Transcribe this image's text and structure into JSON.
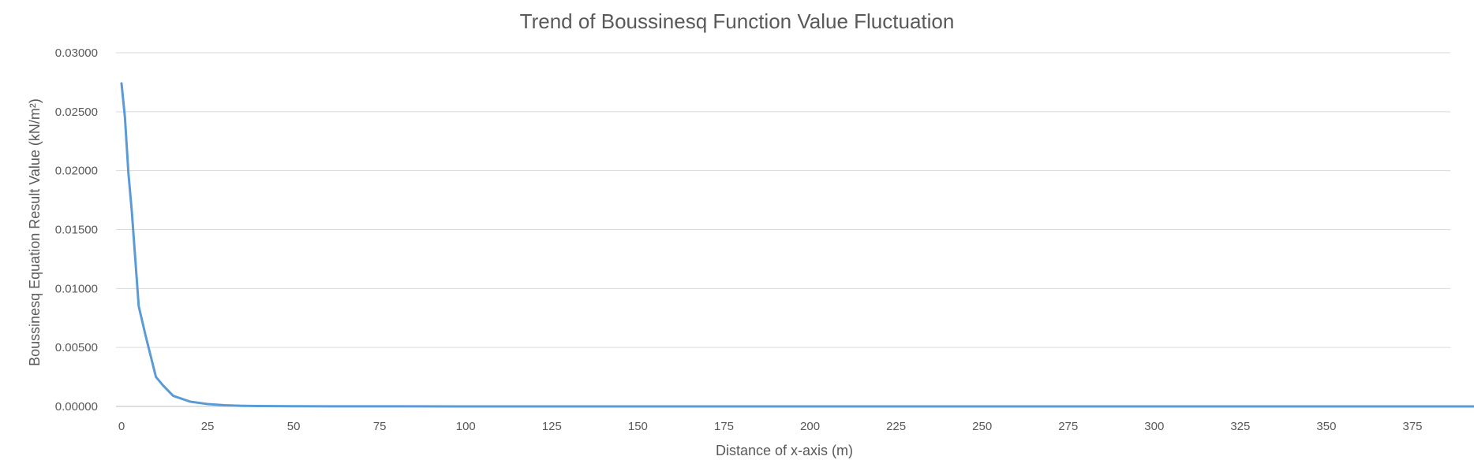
{
  "chart_data": {
    "type": "line",
    "title": "Trend of Boussinesq Function Value Fluctuation",
    "xlabel": "Distance of x-axis (m)",
    "ylabel": "Boussinesq Equation Result Value (kN/m²)",
    "xlim": [
      0,
      395
    ],
    "ylim": [
      0,
      0.03
    ],
    "x_ticks": [
      0,
      25,
      50,
      75,
      100,
      125,
      150,
      175,
      200,
      225,
      250,
      275,
      300,
      325,
      350,
      375
    ],
    "y_ticks": [
      "0.00000",
      "0.00500",
      "0.01000",
      "0.01500",
      "0.02000",
      "0.02500",
      "0.03000"
    ],
    "y_tick_values": [
      0,
      0.005,
      0.01,
      0.015,
      0.02,
      0.025,
      0.03
    ],
    "grid": true,
    "legend": "none",
    "series": [
      {
        "color": "#5b9bd5",
        "x": [
          0,
          1,
          2,
          3,
          4,
          5,
          7,
          10,
          12,
          15,
          20,
          25,
          30,
          35,
          40,
          50,
          60,
          80,
          100,
          150,
          200,
          300,
          395
        ],
        "y": [
          0.0274,
          0.0245,
          0.0198,
          0.0165,
          0.0125,
          0.0085,
          0.006,
          0.0025,
          0.0018,
          0.0009,
          0.0004,
          0.0002,
          0.0001,
          5e-05,
          3e-05,
          2e-05,
          1e-05,
          5e-06,
          2e-06,
          1e-06,
          5e-07,
          2e-07,
          1e-07
        ]
      }
    ]
  }
}
